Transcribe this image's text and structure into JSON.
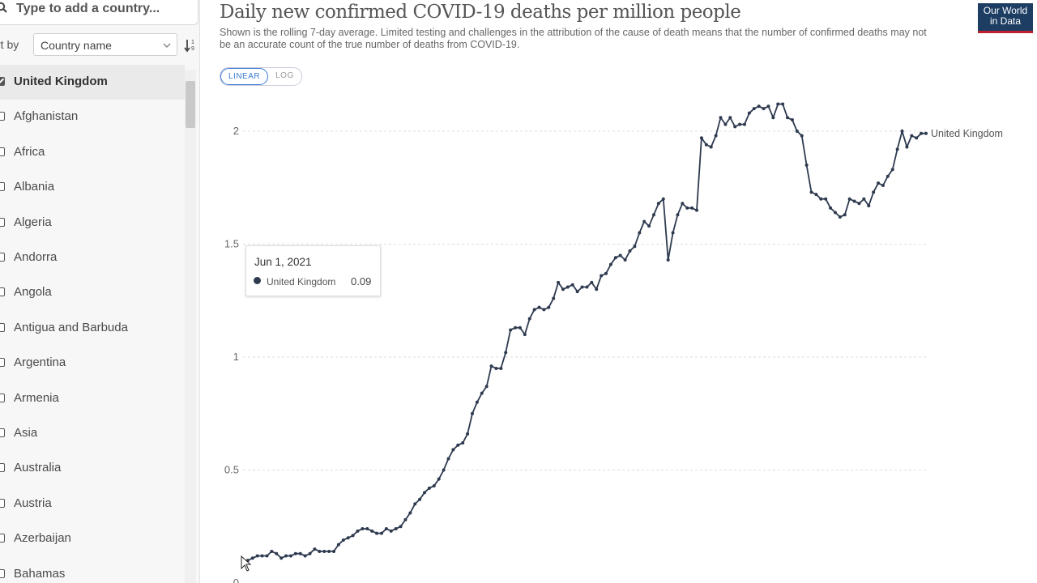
{
  "sidebar": {
    "search_placeholder": "Type to add a country...",
    "sort_label": "rt by",
    "sort_value": "Country name",
    "countries": [
      {
        "label": "United Kingdom",
        "checked": true
      },
      {
        "label": "Afghanistan",
        "checked": false
      },
      {
        "label": "Africa",
        "checked": false
      },
      {
        "label": "Albania",
        "checked": false
      },
      {
        "label": "Algeria",
        "checked": false
      },
      {
        "label": "Andorra",
        "checked": false
      },
      {
        "label": "Angola",
        "checked": false
      },
      {
        "label": "Antigua and Barbuda",
        "checked": false
      },
      {
        "label": "Argentina",
        "checked": false
      },
      {
        "label": "Armenia",
        "checked": false
      },
      {
        "label": "Asia",
        "checked": false
      },
      {
        "label": "Australia",
        "checked": false
      },
      {
        "label": "Austria",
        "checked": false
      },
      {
        "label": "Azerbaijan",
        "checked": false
      },
      {
        "label": "Bahamas",
        "checked": false
      }
    ]
  },
  "header": {
    "title": "Daily new confirmed COVID-19 deaths per million people",
    "subtitle": "Shown is the rolling 7-day average. Limited testing and challenges in the attribution of the cause of death means that the number of confirmed deaths may not be an accurate count of the true number of deaths from COVID-19.",
    "logo_line1": "Our World",
    "logo_line2": "in Data",
    "logo_color": "#1d3d63",
    "logo_accent": "#c0202f"
  },
  "scale_toggle": {
    "linear": "LINEAR",
    "log": "LOG",
    "active": "linear"
  },
  "tooltip": {
    "date": "Jun 1, 2021",
    "series": "United Kingdom",
    "value": "0.09"
  },
  "chart_data": {
    "type": "line",
    "title": "Daily new confirmed COVID-19 deaths per million people",
    "ylim": [
      0,
      2.1
    ],
    "yticks": [
      "0",
      "0.5",
      "1",
      "1.5",
      "2"
    ],
    "grid": true,
    "series": [
      {
        "name": "United Kingdom",
        "color": "#2e3a4f",
        "values": [
          0.09,
          0.1,
          0.11,
          0.12,
          0.12,
          0.12,
          0.14,
          0.13,
          0.11,
          0.12,
          0.12,
          0.13,
          0.13,
          0.12,
          0.13,
          0.15,
          0.14,
          0.14,
          0.14,
          0.14,
          0.17,
          0.19,
          0.2,
          0.21,
          0.23,
          0.24,
          0.24,
          0.23,
          0.22,
          0.22,
          0.24,
          0.23,
          0.24,
          0.25,
          0.28,
          0.31,
          0.35,
          0.37,
          0.4,
          0.42,
          0.43,
          0.46,
          0.5,
          0.55,
          0.59,
          0.61,
          0.62,
          0.66,
          0.75,
          0.8,
          0.84,
          0.87,
          0.96,
          0.95,
          0.95,
          1.02,
          1.12,
          1.13,
          1.13,
          1.1,
          1.17,
          1.21,
          1.22,
          1.21,
          1.22,
          1.26,
          1.33,
          1.3,
          1.31,
          1.32,
          1.29,
          1.31,
          1.31,
          1.33,
          1.3,
          1.36,
          1.37,
          1.41,
          1.44,
          1.45,
          1.43,
          1.47,
          1.49,
          1.55,
          1.6,
          1.58,
          1.63,
          1.68,
          1.7,
          1.43,
          1.55,
          1.63,
          1.68,
          1.66,
          1.66,
          1.65,
          1.97,
          1.94,
          1.93,
          1.98,
          2.06,
          2.03,
          2.06,
          2.02,
          2.03,
          2.03,
          2.08,
          2.1,
          2.11,
          2.1,
          2.11,
          2.06,
          2.12,
          2.12,
          2.06,
          2.05,
          2.0,
          1.98,
          1.85,
          1.73,
          1.72,
          1.7,
          1.7,
          1.66,
          1.64,
          1.62,
          1.63,
          1.7,
          1.69,
          1.68,
          1.7,
          1.67,
          1.73,
          1.77,
          1.76,
          1.8,
          1.83,
          1.92,
          2.0,
          1.93,
          1.98,
          1.97,
          1.99,
          1.99
        ]
      }
    ]
  }
}
